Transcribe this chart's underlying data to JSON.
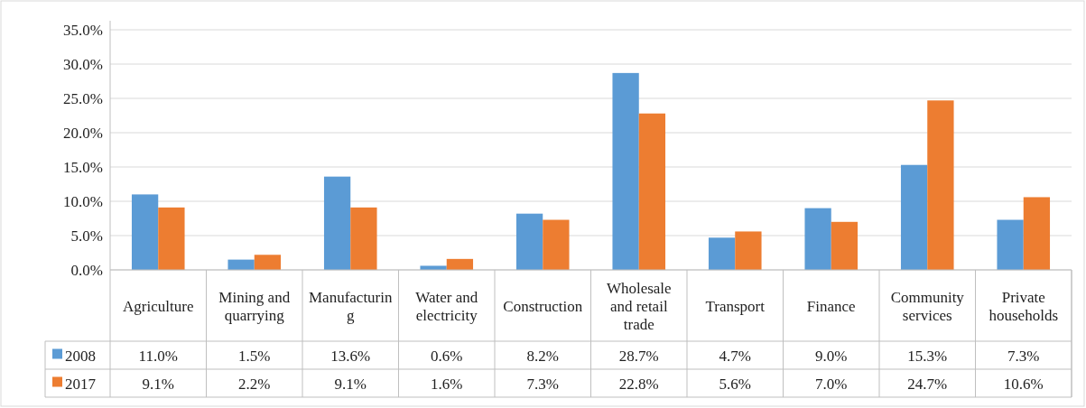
{
  "chart_data": {
    "type": "bar",
    "categories": [
      "Agriculture",
      "Mining and quarrying",
      "Manufacturing",
      "Water and electricity",
      "Construction",
      "Wholesale and retail trade",
      "Transport",
      "Finance",
      "Community services",
      "Private households"
    ],
    "series": [
      {
        "name": "2008",
        "color": "#5b9bd5",
        "values": [
          11.0,
          1.5,
          13.6,
          0.6,
          8.2,
          28.7,
          4.7,
          9.0,
          15.3,
          7.3
        ],
        "value_labels": [
          "11.0%",
          "1.5%",
          "13.6%",
          "0.6%",
          "8.2%",
          "28.7%",
          "4.7%",
          "9.0%",
          "15.3%",
          "7.3%"
        ]
      },
      {
        "name": "2017",
        "color": "#ed7d31",
        "values": [
          9.1,
          2.2,
          9.1,
          1.6,
          7.3,
          22.8,
          5.6,
          7.0,
          24.7,
          10.6
        ],
        "value_labels": [
          "9.1%",
          "2.2%",
          "9.1%",
          "1.6%",
          "7.3%",
          "22.8%",
          "5.6%",
          "7.0%",
          "24.7%",
          "10.6%"
        ]
      }
    ],
    "ylim": [
      0,
      35
    ],
    "yticks": [
      {
        "value": 0,
        "label": "0.0%"
      },
      {
        "value": 5,
        "label": "5.0%"
      },
      {
        "value": 10,
        "label": "10.0%"
      },
      {
        "value": 15,
        "label": "15.0%"
      },
      {
        "value": 20,
        "label": "20.0%"
      },
      {
        "value": 25,
        "label": "25.0%"
      },
      {
        "value": 30,
        "label": "30.0%"
      },
      {
        "value": 35,
        "label": "35.0%"
      }
    ],
    "grid": "y",
    "legend": "bottom"
  }
}
